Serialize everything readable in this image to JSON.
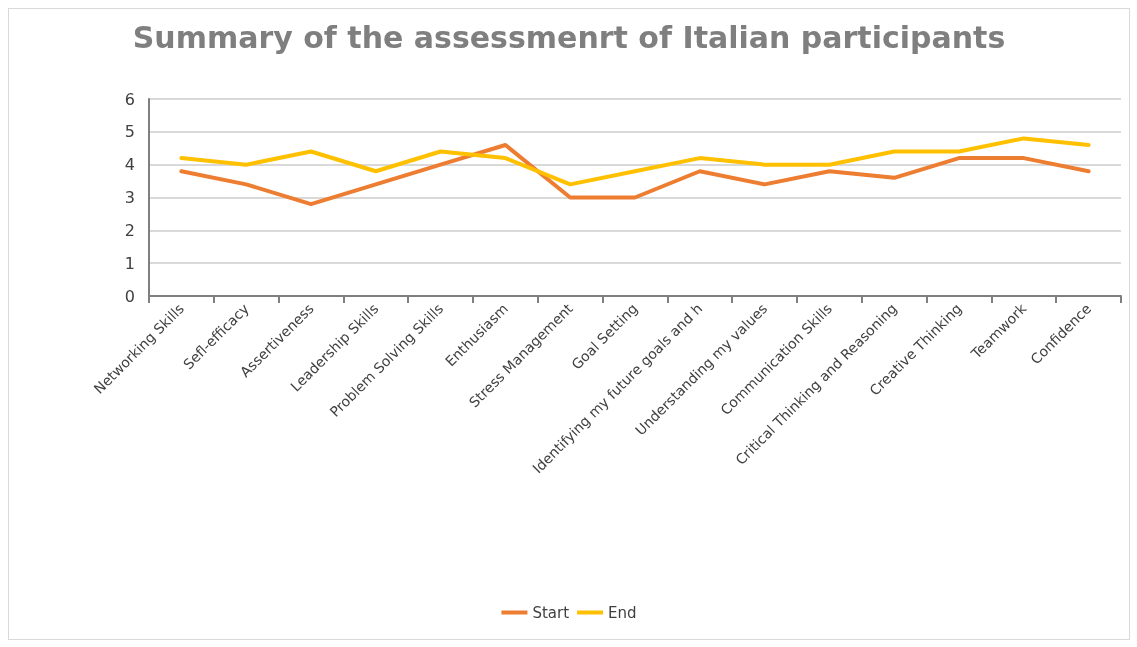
{
  "chart_data": {
    "type": "line",
    "title": "Summary of the assessmenrt of Italian participants",
    "categories": [
      "Networking Skills",
      "Sefl-efficacy",
      "Assertiveness",
      "Leadership Skills",
      "Problem Solving Skills",
      "Enthusiasm",
      "Stress Management",
      "Goal Setting",
      "Identifying my future goals and h",
      "Understanding my values",
      "Communication Skills",
      "Critical Thinking and Reasoning",
      "Creative Thinking",
      "Teamwork",
      "Confidence"
    ],
    "series": [
      {
        "name": "Start",
        "color": "#ed7d31",
        "values": [
          3.8,
          3.4,
          2.8,
          3.4,
          4.0,
          4.6,
          3.0,
          3.0,
          3.8,
          3.4,
          3.8,
          3.6,
          4.2,
          4.2,
          3.8
        ]
      },
      {
        "name": "End",
        "color": "#ffc000",
        "values": [
          4.2,
          4.0,
          4.4,
          3.8,
          4.4,
          4.2,
          3.4,
          3.8,
          4.2,
          4.0,
          4.0,
          4.4,
          4.4,
          4.8,
          4.6
        ]
      }
    ],
    "ylim": [
      0,
      6
    ],
    "yticks": [
      0,
      1,
      2,
      3,
      4,
      5,
      6
    ],
    "grid": "y",
    "legend": "bottom",
    "marker": "none",
    "line_style": "solid"
  }
}
